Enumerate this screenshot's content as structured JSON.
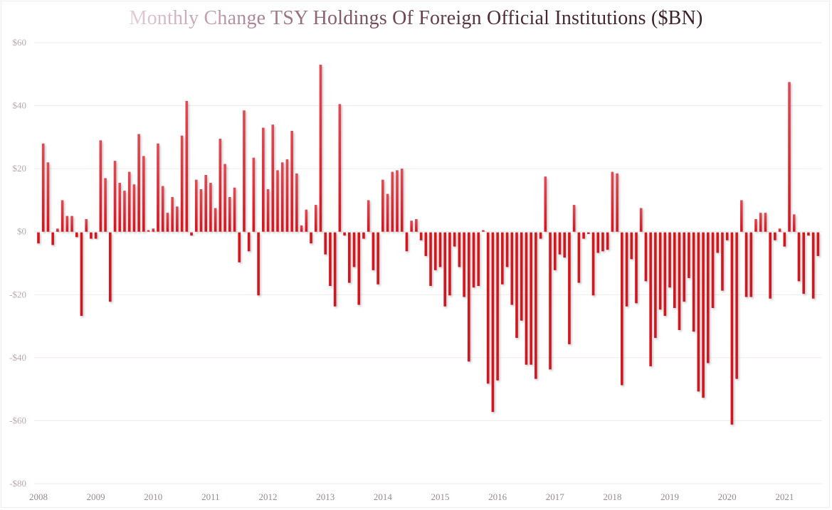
{
  "chart_data": {
    "type": "bar",
    "title": "Monthly Change TSY Holdings Of Foreign Official Institutions ($BN)",
    "xlabel": "",
    "ylabel": "",
    "ylim": [
      -80,
      60
    ],
    "yticks": [
      60,
      40,
      20,
      0,
      -20,
      -40,
      -60,
      -80
    ],
    "ytick_labels": [
      "$60",
      "$40",
      "$20",
      "$0",
      "-$20",
      "-$40",
      "-$60",
      "-$80"
    ],
    "xtick_labels": [
      "2008",
      "2009",
      "2010",
      "2011",
      "2012",
      "2013",
      "2014",
      "2015",
      "2016",
      "2017",
      "2018",
      "2019",
      "2020",
      "2021"
    ],
    "grid": true,
    "legend": "none",
    "bar_color": "#d7141e",
    "start": "2008-01",
    "frequency": "monthly",
    "series": [
      {
        "name": "Monthly Change",
        "values": [
          -3.5,
          28,
          22,
          -4,
          1,
          10,
          5,
          5,
          -1.5,
          -26.5,
          4,
          -2,
          -2,
          29,
          17,
          -22,
          22.5,
          15.5,
          13,
          19,
          15,
          31,
          24,
          0.5,
          1,
          28,
          14.5,
          6,
          11,
          8,
          30.5,
          41.5,
          -1,
          16.5,
          13.5,
          18,
          15.5,
          7.5,
          29.5,
          21.5,
          11,
          14,
          -9.5,
          38.5,
          -6,
          23.5,
          -20,
          33,
          13.5,
          34,
          19.5,
          22,
          23,
          32,
          18.5,
          2,
          7,
          -3.5,
          8.5,
          53,
          -7,
          -17,
          -23.5,
          40.5,
          -1,
          -16,
          -11,
          -23,
          -2,
          10,
          -12,
          -16.5,
          16.5,
          12,
          19,
          19.5,
          20,
          -6,
          3.5,
          4,
          -2.5,
          -7.5,
          -17,
          -12,
          -11,
          -23.5,
          -20,
          -4.5,
          -11,
          -20.5,
          -41,
          -17.5,
          -17,
          0.5,
          -48,
          -57,
          -47,
          -16.5,
          -11,
          -23,
          -33.5,
          -28,
          -42,
          -42,
          -46.5,
          -2,
          17.5,
          -43.5,
          -12,
          -7,
          -8,
          -35.5,
          8.5,
          -16,
          -2,
          -0.5,
          -20,
          -6.5,
          -6,
          -5.5,
          19,
          18.5,
          -48.5,
          -23.5,
          -8.5,
          -22.5,
          7.5,
          -15.5,
          -42.5,
          -33.5,
          -24.5,
          -26.5,
          -17.5,
          -24,
          -31,
          -22,
          -14.5,
          -31.5,
          -50.5,
          -52.5,
          -41.5,
          -24,
          -6.5,
          -18.5,
          -2.5,
          -61,
          -46.5,
          10,
          -20.5,
          -20.5,
          4,
          6,
          6,
          -21,
          -2.5,
          1,
          -4.5,
          47.5,
          5.5,
          -15.5,
          -19.5,
          -1,
          -21,
          -7.5
        ]
      }
    ]
  }
}
